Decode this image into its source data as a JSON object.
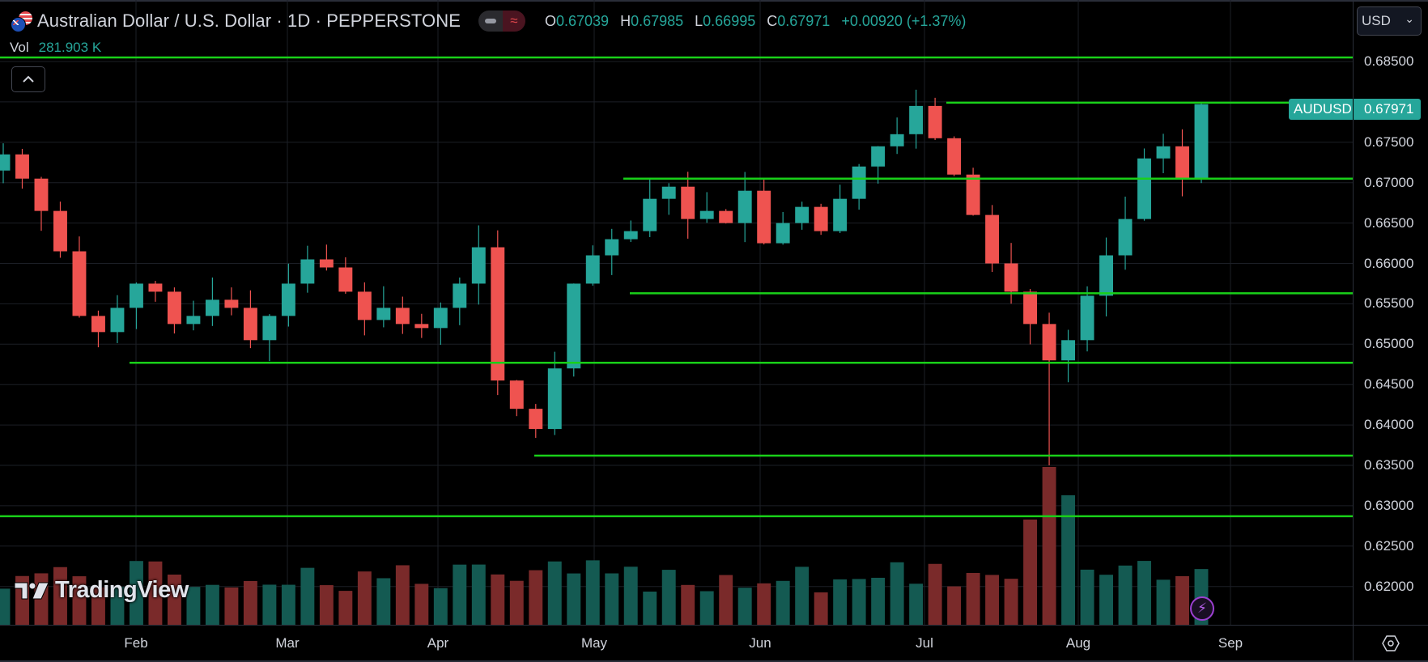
{
  "header": {
    "symbol_title": "Australian Dollar / U.S. Dollar · 1D · PEPPERSTONE",
    "pill_icon_left": "hide-icon",
    "pill_icon_right": "wave-icon",
    "pill_wave_glyph": "≈",
    "ohlc": {
      "o_label": "O",
      "o_value": "0.67039",
      "h_label": "H",
      "h_value": "0.67985",
      "l_label": "L",
      "l_value": "0.66995",
      "c_label": "C",
      "c_value": "0.67971",
      "change": "+0.00920 (+1.37%)"
    },
    "volume": {
      "label": "Vol",
      "value": "281.903 K"
    },
    "currency": "USD",
    "currency_chevron": "⌄"
  },
  "last_price": {
    "symbol": "AUDUSD",
    "value": "0.67971"
  },
  "price_axis": {
    "labels": [
      "0.68500",
      "0.67500",
      "0.67000",
      "0.66500",
      "0.66000",
      "0.65500",
      "0.65000",
      "0.64500",
      "0.64000",
      "0.63500",
      "0.63000",
      "0.62500",
      "0.62000"
    ]
  },
  "time_axis": {
    "labels": [
      "Feb",
      "Mar",
      "Apr",
      "May",
      "Jun",
      "Jul",
      "Aug",
      "Sep"
    ]
  },
  "watermark": "TradingView",
  "colors": {
    "up": "#26a69a",
    "down": "#ef5350",
    "vol_up": "#145a52",
    "vol_down": "#7a2a2a",
    "level_line": "#19d019",
    "grid": "#1c1f26",
    "background": "#000000"
  },
  "chart_data": {
    "type": "candlestick",
    "title": "Australian Dollar / U.S. Dollar · 1D · PEPPERSTONE",
    "ylabel": "USD",
    "ylim": [
      0.6165,
      0.6875
    ],
    "x_labels": [
      "Feb",
      "Mar",
      "Apr",
      "May",
      "Jun",
      "Jul",
      "Aug",
      "Sep"
    ],
    "grid": true,
    "last": {
      "open": 0.67039,
      "high": 0.67985,
      "low": 0.66995,
      "close": 0.67971,
      "change": 0.0092,
      "change_pct": 1.37,
      "volume": "281.903K"
    },
    "horizontal_levels": [
      {
        "price": 0.6855,
        "from": "start",
        "to": "end"
      },
      {
        "price": 0.6799,
        "from": "mid-Jul",
        "to": "end"
      },
      {
        "price": 0.6705,
        "from": "early-May",
        "to": "end"
      },
      {
        "price": 0.6563,
        "from": "early-May",
        "to": "end"
      },
      {
        "price": 0.6477,
        "from": "late-Jan",
        "to": "end"
      },
      {
        "price": 0.6362,
        "from": "mid-Apr",
        "to": "end"
      },
      {
        "price": 0.6287,
        "from": "start",
        "to": "end"
      }
    ],
    "approx_closes_by_month": {
      "Jan": [
        0.6735,
        0.6705,
        0.6665,
        0.6615,
        0.6535,
        0.6515,
        0.6545,
        0.6575
      ],
      "Feb": [
        0.6565,
        0.6525,
        0.6535,
        0.6555,
        0.6545,
        0.6505,
        0.6535
      ],
      "Mar": [
        0.6575,
        0.6605,
        0.6595,
        0.6565,
        0.653,
        0.6545,
        0.6525
      ],
      "Apr": [
        0.652,
        0.6545,
        0.6575,
        0.662,
        0.6455,
        0.642,
        0.6395,
        0.647
      ],
      "May": [
        0.6575,
        0.661,
        0.663,
        0.664,
        0.668,
        0.6695,
        0.6655
      ],
      "Jun": [
        0.6665,
        0.665,
        0.669,
        0.6625,
        0.665,
        0.667,
        0.664
      ],
      "Jul": [
        0.668,
        0.672,
        0.6745,
        0.676,
        0.6795,
        0.6755,
        0.671,
        0.666,
        0.66,
        0.6565
      ],
      "Aug": [
        0.6525,
        0.648,
        0.6505,
        0.656,
        0.661,
        0.6655,
        0.673,
        0.6745,
        0.6705,
        0.6797
      ]
    }
  }
}
